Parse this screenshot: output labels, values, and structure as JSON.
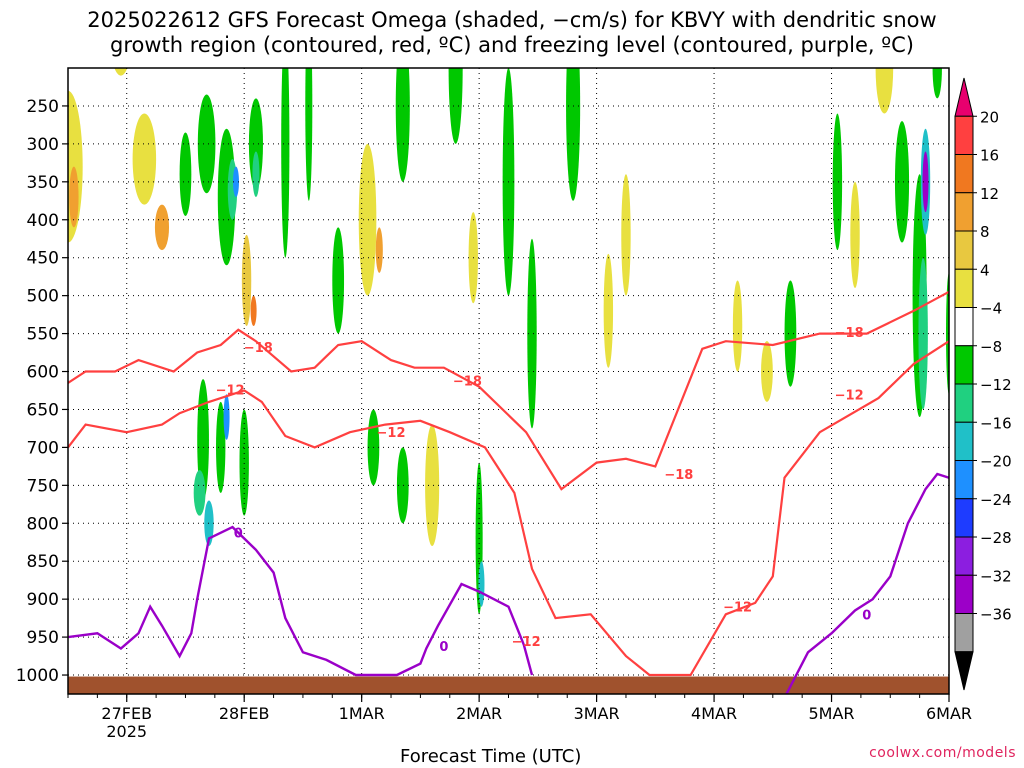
{
  "title_line1": "2025022612 GFS Forecast Omega (shaded, −cm/s) for KBVY with dendritic snow",
  "title_line2": "growth region (contoured, red, ºC) and freezing level (contoured, purple, ºC)",
  "xlabel": "Forecast Time (UTC)",
  "credit": "coolwx.com/models",
  "chart_data": {
    "type": "heatmap",
    "title": "2025022612 GFS Forecast Omega (shaded, −cm/s) for KBVY with dendritic snow growth region (contoured, red, ºC) and freezing level (contoured, purple, ºC)",
    "xlabel": "Forecast Time (UTC)",
    "ylabel": "",
    "x_ticks": [
      {
        "t": 0.5,
        "label": "27FEB",
        "sub": "2025"
      },
      {
        "t": 1.5,
        "label": "28FEB"
      },
      {
        "t": 2.5,
        "label": "1MAR"
      },
      {
        "t": 3.5,
        "label": "2MAR"
      },
      {
        "t": 4.5,
        "label": "3MAR"
      },
      {
        "t": 5.5,
        "label": "4MAR"
      },
      {
        "t": 6.5,
        "label": "5MAR"
      },
      {
        "t": 7.5,
        "label": "6MAR"
      }
    ],
    "x_range_days": [
      0,
      7.5
    ],
    "y_ticks": [
      250,
      300,
      350,
      400,
      450,
      500,
      550,
      600,
      650,
      700,
      750,
      800,
      850,
      900,
      950,
      1000
    ],
    "y_range_hpa": [
      200,
      1025
    ],
    "grid": true,
    "colorbar": {
      "labels": [
        "20",
        "16",
        "12",
        "8",
        "4",
        "−4",
        "−8",
        "−12",
        "−16",
        "−20",
        "−24",
        "−28",
        "−32",
        "−36"
      ],
      "colors": [
        "#e8006e",
        "#ff4040",
        "#f07820",
        "#f0a030",
        "#e8c840",
        "#e8e040",
        "#ffffff",
        "#00c800",
        "#20d080",
        "#20c0c8",
        "#1e90ff",
        "#1e3cff",
        "#8c1ee0",
        "#9c00c8",
        "#a0a0a0",
        "#000000"
      ]
    },
    "omega_blobs": [
      {
        "x": 0.0,
        "p": 330,
        "w": 0.25,
        "h": 200,
        "c": "#e8e040"
      },
      {
        "x": 0.05,
        "p": 370,
        "w": 0.08,
        "h": 80,
        "c": "#f0a030"
      },
      {
        "x": 0.45,
        "p": 150,
        "w": 0.2,
        "h": 120,
        "c": "#e8e040"
      },
      {
        "x": 0.65,
        "p": 320,
        "w": 0.2,
        "h": 120,
        "c": "#e8e040"
      },
      {
        "x": 0.8,
        "p": 410,
        "w": 0.12,
        "h": 60,
        "c": "#f0a030"
      },
      {
        "x": 1.0,
        "p": 340,
        "w": 0.1,
        "h": 110,
        "c": "#00c800"
      },
      {
        "x": 1.18,
        "p": 300,
        "w": 0.15,
        "h": 130,
        "c": "#00c800"
      },
      {
        "x": 1.35,
        "p": 370,
        "w": 0.15,
        "h": 180,
        "c": "#00c800"
      },
      {
        "x": 1.4,
        "p": 360,
        "w": 0.08,
        "h": 80,
        "c": "#20d080"
      },
      {
        "x": 1.43,
        "p": 350,
        "w": 0.05,
        "h": 40,
        "c": "#1e90ff"
      },
      {
        "x": 1.52,
        "p": 480,
        "w": 0.08,
        "h": 120,
        "c": "#e8c840"
      },
      {
        "x": 1.58,
        "p": 520,
        "w": 0.04,
        "h": 40,
        "c": "#f07820"
      },
      {
        "x": 1.6,
        "p": 300,
        "w": 0.12,
        "h": 120,
        "c": "#00c800"
      },
      {
        "x": 1.6,
        "p": 340,
        "w": 0.06,
        "h": 60,
        "c": "#20d080"
      },
      {
        "x": 1.15,
        "p": 690,
        "w": 0.1,
        "h": 160,
        "c": "#00c800"
      },
      {
        "x": 1.12,
        "p": 760,
        "w": 0.1,
        "h": 60,
        "c": "#20d080"
      },
      {
        "x": 1.2,
        "p": 800,
        "w": 0.08,
        "h": 60,
        "c": "#20c0c8"
      },
      {
        "x": 1.3,
        "p": 700,
        "w": 0.08,
        "h": 120,
        "c": "#00c800"
      },
      {
        "x": 1.35,
        "p": 660,
        "w": 0.04,
        "h": 60,
        "c": "#1e90ff"
      },
      {
        "x": 1.5,
        "p": 720,
        "w": 0.08,
        "h": 140,
        "c": "#00c800"
      },
      {
        "x": 1.85,
        "p": 300,
        "w": 0.07,
        "h": 300,
        "c": "#00c800"
      },
      {
        "x": 2.05,
        "p": 250,
        "w": 0.06,
        "h": 250,
        "c": "#00c800"
      },
      {
        "x": 2.3,
        "p": 480,
        "w": 0.1,
        "h": 140,
        "c": "#00c800"
      },
      {
        "x": 2.55,
        "p": 400,
        "w": 0.15,
        "h": 200,
        "c": "#e8e040"
      },
      {
        "x": 2.65,
        "p": 440,
        "w": 0.06,
        "h": 60,
        "c": "#f0a030"
      },
      {
        "x": 2.85,
        "p": 250,
        "w": 0.12,
        "h": 200,
        "c": "#00c800"
      },
      {
        "x": 2.6,
        "p": 700,
        "w": 0.1,
        "h": 100,
        "c": "#00c800"
      },
      {
        "x": 2.85,
        "p": 750,
        "w": 0.1,
        "h": 100,
        "c": "#00c800"
      },
      {
        "x": 3.1,
        "p": 750,
        "w": 0.12,
        "h": 160,
        "c": "#e8e040"
      },
      {
        "x": 3.3,
        "p": 200,
        "w": 0.12,
        "h": 200,
        "c": "#00c800"
      },
      {
        "x": 3.45,
        "p": 450,
        "w": 0.08,
        "h": 120,
        "c": "#e8e040"
      },
      {
        "x": 3.5,
        "p": 820,
        "w": 0.06,
        "h": 200,
        "c": "#00c800"
      },
      {
        "x": 3.52,
        "p": 880,
        "w": 0.04,
        "h": 60,
        "c": "#20c0c8"
      },
      {
        "x": 3.75,
        "p": 350,
        "w": 0.1,
        "h": 300,
        "c": "#00c800"
      },
      {
        "x": 3.95,
        "p": 550,
        "w": 0.08,
        "h": 250,
        "c": "#00c800"
      },
      {
        "x": 4.3,
        "p": 250,
        "w": 0.12,
        "h": 250,
        "c": "#00c800"
      },
      {
        "x": 4.6,
        "p": 520,
        "w": 0.08,
        "h": 150,
        "c": "#e8e040"
      },
      {
        "x": 4.75,
        "p": 420,
        "w": 0.08,
        "h": 160,
        "c": "#e8e040"
      },
      {
        "x": 5.7,
        "p": 540,
        "w": 0.08,
        "h": 120,
        "c": "#e8e040"
      },
      {
        "x": 5.95,
        "p": 600,
        "w": 0.1,
        "h": 80,
        "c": "#e8e040"
      },
      {
        "x": 6.15,
        "p": 550,
        "w": 0.1,
        "h": 140,
        "c": "#00c800"
      },
      {
        "x": 6.55,
        "p": 350,
        "w": 0.08,
        "h": 180,
        "c": "#00c800"
      },
      {
        "x": 6.7,
        "p": 420,
        "w": 0.08,
        "h": 140,
        "c": "#e8e040"
      },
      {
        "x": 6.95,
        "p": 200,
        "w": 0.15,
        "h": 120,
        "c": "#e8e040"
      },
      {
        "x": 7.1,
        "p": 350,
        "w": 0.12,
        "h": 160,
        "c": "#00c800"
      },
      {
        "x": 7.25,
        "p": 500,
        "w": 0.12,
        "h": 320,
        "c": "#00c800"
      },
      {
        "x": 7.28,
        "p": 550,
        "w": 0.08,
        "h": 200,
        "c": "#20d080"
      },
      {
        "x": 7.3,
        "p": 350,
        "w": 0.08,
        "h": 140,
        "c": "#20c0c8"
      },
      {
        "x": 7.3,
        "p": 350,
        "w": 0.04,
        "h": 80,
        "c": "#9c00c8"
      },
      {
        "x": 7.4,
        "p": 200,
        "w": 0.08,
        "h": 80,
        "c": "#00c800"
      },
      {
        "x": 7.5,
        "p": 550,
        "w": 0.05,
        "h": 160,
        "c": "#00c800"
      }
    ],
    "isotherm_m18": {
      "points": [
        [
          0,
          615
        ],
        [
          0.15,
          600
        ],
        [
          0.4,
          600
        ],
        [
          0.6,
          585
        ],
        [
          0.9,
          600
        ],
        [
          1.1,
          575
        ],
        [
          1.3,
          565
        ],
        [
          1.45,
          545
        ],
        [
          1.6,
          560
        ],
        [
          1.9,
          600
        ],
        [
          2.1,
          595
        ],
        [
          2.2,
          580
        ],
        [
          2.3,
          565
        ],
        [
          2.5,
          560
        ],
        [
          2.75,
          585
        ],
        [
          2.95,
          595
        ],
        [
          3.2,
          595
        ],
        [
          3.5,
          620
        ],
        [
          3.9,
          680
        ],
        [
          4.2,
          755
        ],
        [
          4.5,
          720
        ],
        [
          4.75,
          715
        ],
        [
          5.0,
          725
        ],
        [
          5.4,
          570
        ],
        [
          5.6,
          560
        ],
        [
          6.0,
          565
        ],
        [
          6.4,
          550
        ],
        [
          6.8,
          550
        ],
        [
          7.2,
          520
        ],
        [
          7.5,
          495
        ]
      ],
      "labels": [
        {
          "t": 1.62,
          "p": 568,
          "text": "−18"
        },
        {
          "t": 3.4,
          "p": 612,
          "text": "−18"
        },
        {
          "t": 5.2,
          "p": 735,
          "text": "−18"
        },
        {
          "t": 6.65,
          "p": 548,
          "text": "−18"
        }
      ]
    },
    "isotherm_m12": {
      "points": [
        [
          0,
          700
        ],
        [
          0.15,
          670
        ],
        [
          0.5,
          680
        ],
        [
          0.8,
          670
        ],
        [
          0.95,
          655
        ],
        [
          1.2,
          640
        ],
        [
          1.5,
          625
        ],
        [
          1.65,
          640
        ],
        [
          1.85,
          685
        ],
        [
          2.1,
          700
        ],
        [
          2.4,
          680
        ],
        [
          2.7,
          670
        ],
        [
          3.0,
          665
        ],
        [
          3.25,
          680
        ],
        [
          3.55,
          700
        ],
        [
          3.8,
          760
        ],
        [
          3.95,
          860
        ],
        [
          4.15,
          925
        ],
        [
          4.45,
          920
        ],
        [
          4.75,
          975
        ],
        [
          4.95,
          1000
        ],
        [
          5.3,
          1000
        ],
        [
          5.6,
          920
        ],
        [
          5.85,
          905
        ],
        [
          6.0,
          870
        ],
        [
          6.1,
          740
        ],
        [
          6.4,
          680
        ],
        [
          6.9,
          635
        ],
        [
          7.2,
          590
        ],
        [
          7.5,
          560
        ]
      ],
      "labels": [
        {
          "t": 1.38,
          "p": 624,
          "text": "−12"
        },
        {
          "t": 2.75,
          "p": 680,
          "text": "−12"
        },
        {
          "t": 3.9,
          "p": 955,
          "text": "−12"
        },
        {
          "t": 5.7,
          "p": 910,
          "text": "−12"
        },
        {
          "t": 6.65,
          "p": 630,
          "text": "−12"
        }
      ]
    },
    "freezing_level": {
      "segments": [
        [
          [
            0,
            950
          ],
          [
            0.25,
            945
          ],
          [
            0.45,
            965
          ],
          [
            0.6,
            945
          ],
          [
            0.7,
            910
          ],
          [
            0.8,
            935
          ],
          [
            0.95,
            975
          ],
          [
            1.05,
            945
          ],
          [
            1.1,
            900
          ],
          [
            1.2,
            820
          ],
          [
            1.4,
            805
          ],
          [
            1.6,
            835
          ],
          [
            1.75,
            865
          ],
          [
            1.85,
            925
          ],
          [
            2.0,
            970
          ],
          [
            2.2,
            980
          ],
          [
            2.45,
            1000
          ],
          [
            2.8,
            1000
          ],
          [
            3.0,
            985
          ],
          [
            3.05,
            965
          ],
          [
            3.15,
            935
          ],
          [
            3.35,
            880
          ],
          [
            3.5,
            890
          ],
          [
            3.75,
            910
          ],
          [
            3.88,
            960
          ],
          [
            3.95,
            1000
          ]
        ],
        [
          [
            6.1,
            1030
          ],
          [
            6.3,
            970
          ],
          [
            6.5,
            945
          ],
          [
            6.7,
            915
          ],
          [
            6.85,
            900
          ],
          [
            7.0,
            870
          ],
          [
            7.15,
            800
          ],
          [
            7.3,
            755
          ],
          [
            7.4,
            735
          ],
          [
            7.5,
            740
          ]
        ]
      ],
      "labels": [
        {
          "t": 1.45,
          "p": 812,
          "text": "0"
        },
        {
          "t": 3.2,
          "p": 962,
          "text": "0"
        },
        {
          "t": 6.8,
          "p": 920,
          "text": "0"
        }
      ]
    }
  }
}
